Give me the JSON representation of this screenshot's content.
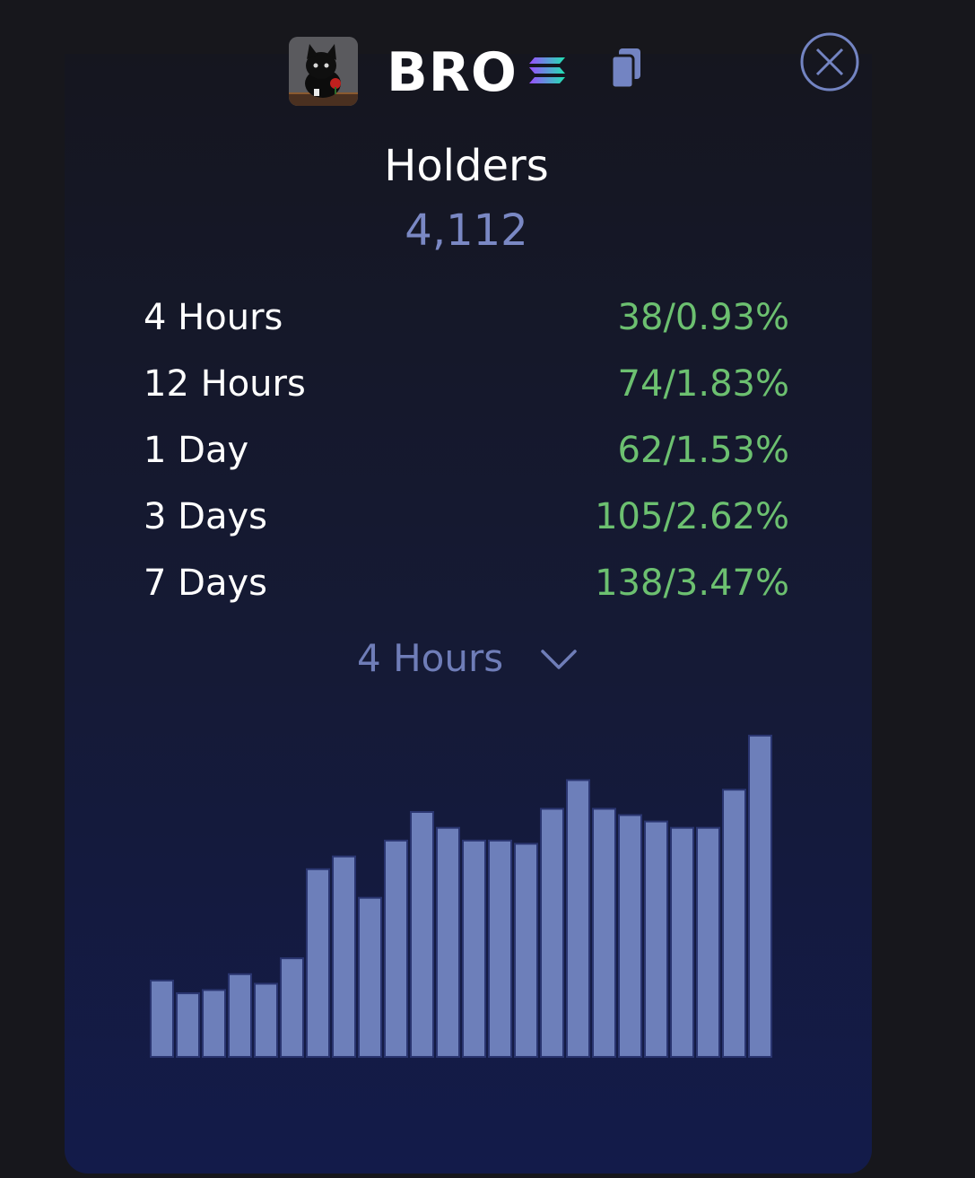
{
  "token": {
    "name": "BRO",
    "avatar_icon": "black-cat-avatar",
    "chain_icon": "solana-icon",
    "copy_icon": "copy-icon",
    "close_icon": "close-icon"
  },
  "holders": {
    "title": "Holders",
    "count": "4,112"
  },
  "stats": [
    {
      "label": "4 Hours",
      "value": "38/0.93%"
    },
    {
      "label": "12 Hours",
      "value": "74/1.83%"
    },
    {
      "label": "1 Day",
      "value": "62/1.53%"
    },
    {
      "label": "3 Days",
      "value": "105/2.62%"
    },
    {
      "label": "7 Days",
      "value": "138/3.47%"
    }
  ],
  "period_select": {
    "selected": "4 Hours"
  },
  "colors": {
    "accent": "#7a88c4",
    "positive": "#6cc070",
    "bar": "#6d7fba",
    "bar_border": "#2a3570"
  },
  "chart_data": {
    "type": "bar",
    "values": [
      24,
      20,
      21,
      26,
      23,
      31,
      59,
      63,
      50,
      68,
      77,
      72,
      68,
      68,
      67,
      78,
      87,
      78,
      76,
      74,
      72,
      72,
      84,
      101
    ],
    "ylim": [
      0,
      110
    ]
  }
}
